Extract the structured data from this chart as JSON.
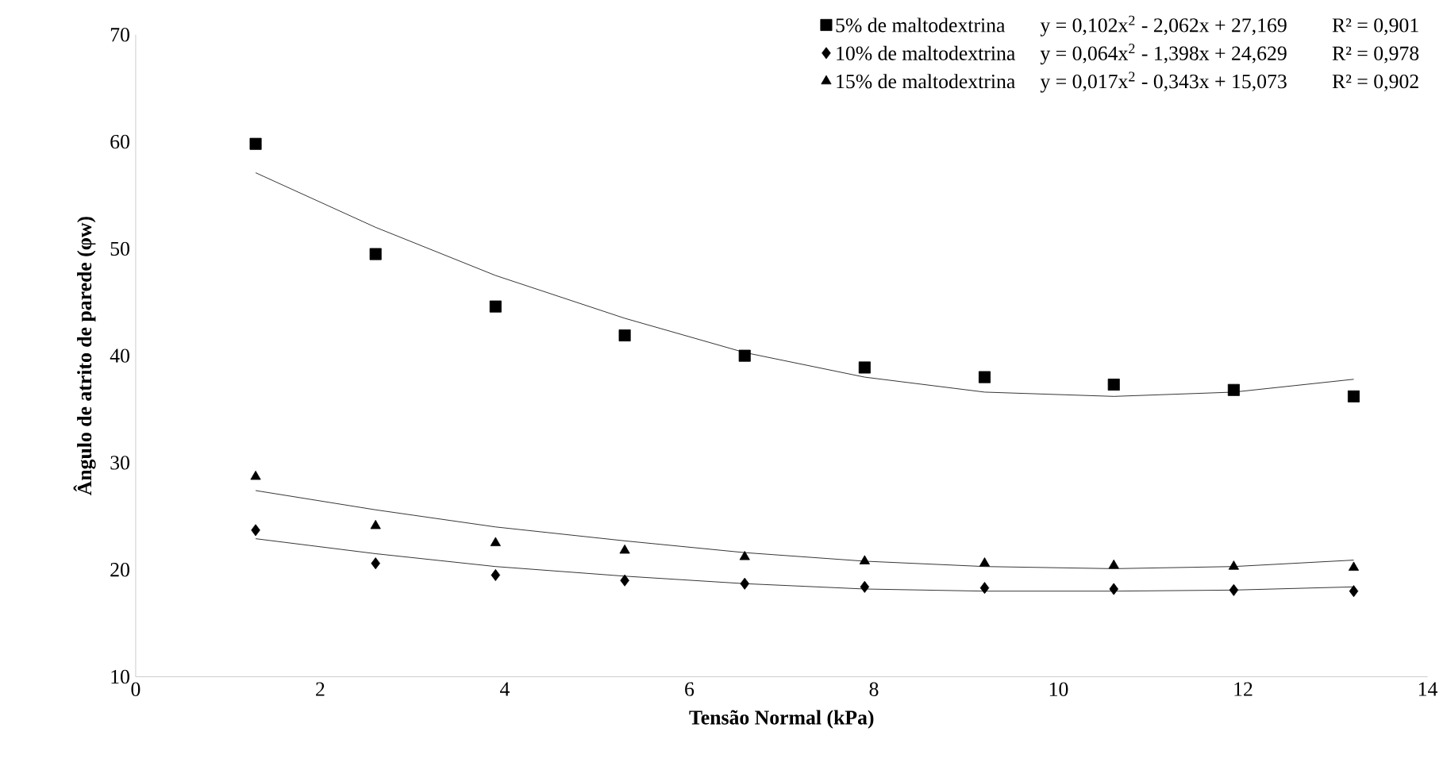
{
  "chart_data": {
    "type": "scatter",
    "xlabel": "Tensão Normal (kPa)",
    "ylabel": "Ângulo de atrito de parede (φw)",
    "x": [
      1.3,
      2.6,
      3.9,
      5.3,
      6.6,
      7.9,
      9.2,
      10.6,
      11.9,
      13.2
    ],
    "series": [
      {
        "name": "5% de maltodextrina",
        "color": "#000000",
        "marker": "square",
        "values": [
          59.8,
          49.5,
          44.6,
          41.9,
          40.0,
          38.9,
          38.0,
          37.3,
          36.8,
          36.2
        ]
      },
      {
        "name": "10% de maltodextrina",
        "color": "#000000",
        "marker": "diamond",
        "values": [
          23.7,
          20.6,
          19.5,
          19.0,
          18.7,
          18.4,
          18.3,
          18.2,
          18.1,
          18.0
        ]
      },
      {
        "name": "15% de maltodextrina",
        "color": "#000000",
        "marker": "triangle",
        "values": [
          28.7,
          24.1,
          22.5,
          21.8,
          21.2,
          20.8,
          20.6,
          20.4,
          20.3,
          20.2
        ]
      },
      {
        "type": "line",
        "color": "#000000",
        "marker": "none",
        "values": [
          57.1,
          52.0,
          47.5,
          43.5,
          40.3,
          38.0,
          36.6,
          36.2,
          36.6,
          37.8
        ]
      },
      {
        "type": "line",
        "color": "#000000",
        "marker": "none",
        "values": [
          22.9,
          21.5,
          20.3,
          19.4,
          18.7,
          18.2,
          18.0,
          18.0,
          18.1,
          18.4
        ]
      },
      {
        "type": "line",
        "color": "#000000",
        "marker": "none",
        "values": [
          27.4,
          25.6,
          24.0,
          22.7,
          21.6,
          20.8,
          20.3,
          20.1,
          20.3,
          20.9
        ]
      }
    ],
    "annotations": [
      "y = 0,102x$^{2}$ - 2,062x + 27,169",
      "R² = 0,901",
      "y = 0,064x$^{2}$ - 1,398x + 24,629",
      "R² = 0,978",
      "y = 0,017x$^{2}$ - 0,343x + 15,073",
      "R² = 0,902"
    ],
    "xlim": [
      0,
      14
    ],
    "xticks": [
      0,
      2,
      4,
      6,
      8,
      10,
      12,
      14
    ],
    "ylim": [
      10,
      70
    ],
    "yticks": [
      10,
      20,
      30,
      40,
      50,
      60,
      70
    ],
    "legend": "top right"
  }
}
